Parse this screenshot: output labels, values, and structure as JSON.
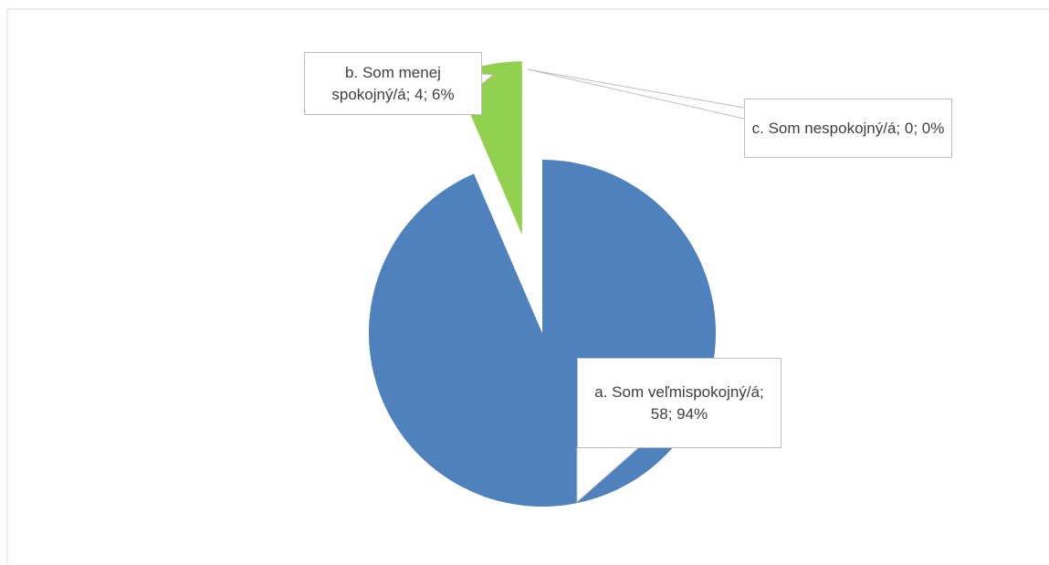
{
  "chart_data": {
    "type": "pie",
    "categories": [
      "a. Som veľmispokojný/á",
      "b. Som menej spokojný/á",
      "c. Som nespokojný/á"
    ],
    "values": [
      58,
      4,
      0
    ],
    "value_labels": [
      "a. Som veľmispokojný/á; 58; 94%",
      "b. Som menej spokojný/á; 4; 6%",
      "c. Som nespokojný/á; 0; 0%"
    ],
    "colors": [
      "#4f81bd",
      "#92d050",
      "#c0504d"
    ]
  }
}
